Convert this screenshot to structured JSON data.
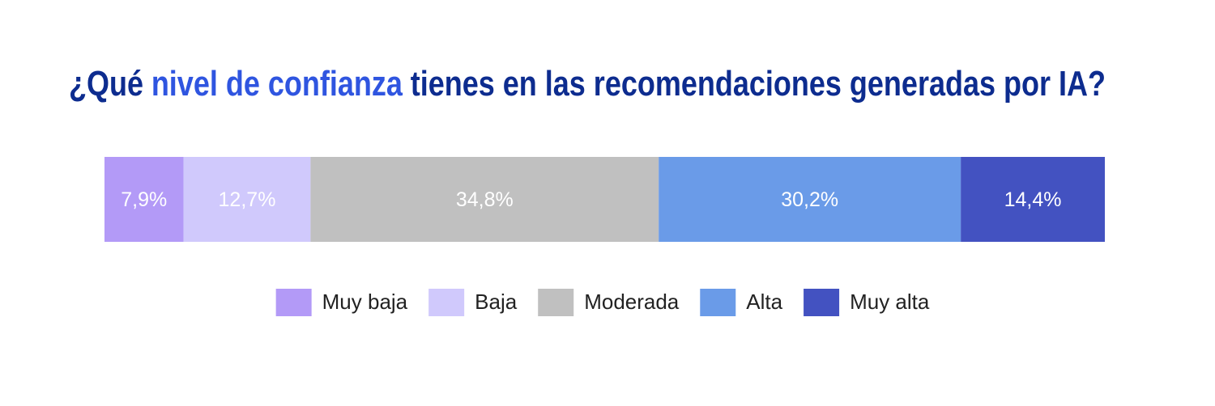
{
  "chart_data": {
    "type": "bar",
    "orientation": "horizontal",
    "stacked": true,
    "title": [
      {
        "text": "¿Qué",
        "color": "#0d2c8f"
      },
      {
        "text": "nivel de confianza",
        "color": "#2f55e0"
      },
      {
        "text": "tienes en las recomendaciones generadas por IA?",
        "color": "#0d2c8f"
      }
    ],
    "xlim": [
      0,
      100
    ],
    "series": [
      {
        "name": "Muy baja",
        "color": "#b39af7",
        "values": [
          7.9
        ],
        "value_labels": [
          "7,9%"
        ]
      },
      {
        "name": "Baja",
        "color": "#d0c9fc",
        "values": [
          12.7
        ],
        "value_labels": [
          "12,7%"
        ]
      },
      {
        "name": "Moderada",
        "color": "#c0c0c0",
        "values": [
          34.8
        ],
        "value_labels": [
          "34,8%"
        ]
      },
      {
        "name": "Alta",
        "color": "#6a9be8",
        "values": [
          30.2
        ],
        "value_labels": [
          "30,2%"
        ]
      },
      {
        "name": "Muy alta",
        "color": "#4352c1",
        "values": [
          14.4
        ],
        "value_labels": [
          "14,4%"
        ]
      }
    ],
    "legend": "bottom"
  }
}
